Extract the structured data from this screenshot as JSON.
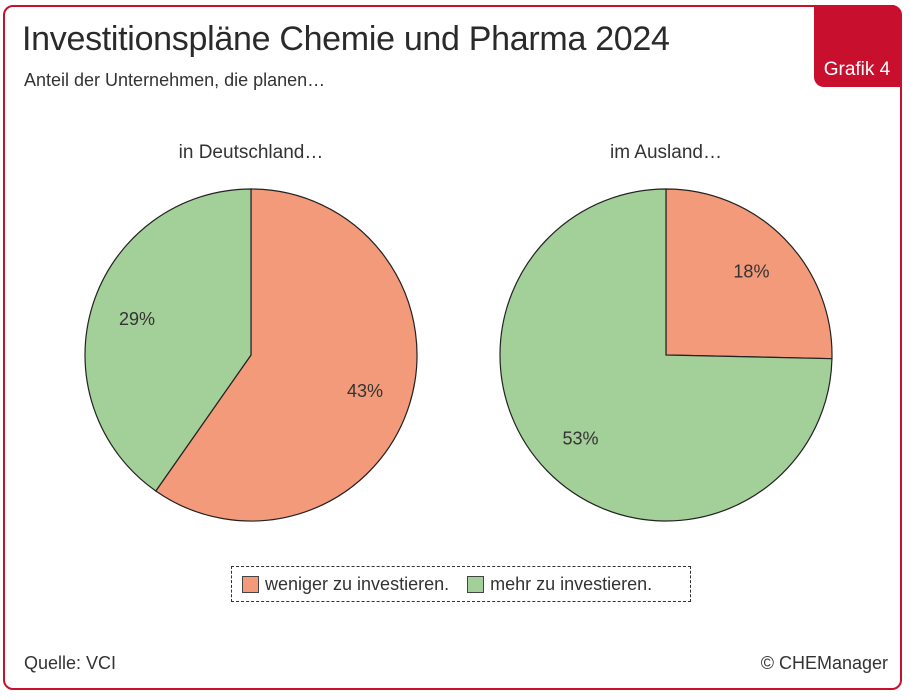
{
  "header": {
    "title": "Investitionspläne Chemie und Pharma 2024",
    "subtitle": "Anteil der Unternehmen, die planen…",
    "badge": "Grafik 4"
  },
  "colors": {
    "weniger": "#f29a7a",
    "mehr": "#a3cf99",
    "accent": "#c8102e"
  },
  "chart_data": [
    {
      "type": "pie",
      "title": "in Deutschland…",
      "slices": [
        {
          "label": "weniger zu investieren.",
          "value": 43,
          "display": "43%"
        },
        {
          "label": "mehr zu investieren.",
          "value": 29,
          "display": "29%"
        }
      ]
    },
    {
      "type": "pie",
      "title": "im Ausland…",
      "slices": [
        {
          "label": "weniger zu investieren.",
          "value": 18,
          "display": "18%"
        },
        {
          "label": "mehr zu investieren.",
          "value": 53,
          "display": "53%"
        }
      ]
    }
  ],
  "legend": {
    "items": [
      {
        "label": "weniger zu investieren."
      },
      {
        "label": "mehr zu investieren."
      }
    ]
  },
  "footer": {
    "source": "Quelle: VCI",
    "copyright": "© CHEManager"
  }
}
